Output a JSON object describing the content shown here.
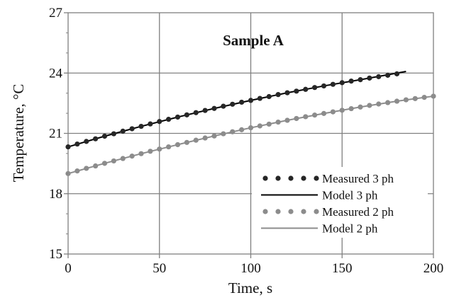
{
  "chart_data": {
    "type": "line",
    "title": "Sample A",
    "xlabel": "Time, s",
    "ylabel": "Temperature, °C",
    "xlim": [
      0,
      200
    ],
    "ylim": [
      15,
      27
    ],
    "x_ticks": [
      "0",
      "50",
      "100",
      "150",
      "200"
    ],
    "y_ticks": [
      "15",
      "18",
      "21",
      "24",
      "27"
    ],
    "grid": true,
    "legend_position": "bottom-right",
    "series": [
      {
        "name": "Measured 3 ph",
        "style": "dots",
        "color": "#262626",
        "x": [
          0,
          5,
          10,
          15,
          20,
          25,
          30,
          35,
          40,
          45,
          50,
          55,
          60,
          65,
          70,
          75,
          80,
          85,
          90,
          95,
          100,
          105,
          110,
          115,
          120,
          125,
          130,
          135,
          140,
          145,
          150,
          155,
          160,
          165,
          170,
          175,
          180
        ],
        "y": [
          20.33,
          20.47,
          20.6,
          20.73,
          20.86,
          20.98,
          21.11,
          21.23,
          21.35,
          21.47,
          21.59,
          21.7,
          21.81,
          21.92,
          22.03,
          22.14,
          22.24,
          22.35,
          22.45,
          22.55,
          22.64,
          22.74,
          22.83,
          22.93,
          23.02,
          23.1,
          23.19,
          23.28,
          23.36,
          23.44,
          23.52,
          23.6,
          23.67,
          23.75,
          23.82,
          23.89,
          23.96
        ]
      },
      {
        "name": "Model 3 ph",
        "style": "line",
        "color": "#000000",
        "x": [
          0,
          20,
          40,
          60,
          80,
          100,
          120,
          140,
          160,
          185
        ],
        "y": [
          20.33,
          20.86,
          21.35,
          21.81,
          22.24,
          22.64,
          23.02,
          23.36,
          23.67,
          24.08
        ]
      },
      {
        "name": "Measured 2 ph",
        "style": "dots",
        "color": "#8c8c8c",
        "x": [
          0,
          5,
          10,
          15,
          20,
          25,
          30,
          35,
          40,
          45,
          50,
          55,
          60,
          65,
          70,
          75,
          80,
          85,
          90,
          95,
          100,
          105,
          110,
          115,
          120,
          125,
          130,
          135,
          140,
          145,
          150,
          155,
          160,
          165,
          170,
          175,
          180,
          185,
          190,
          195,
          200
        ],
        "y": [
          19.0,
          19.13,
          19.26,
          19.38,
          19.51,
          19.63,
          19.75,
          19.87,
          19.99,
          20.11,
          20.22,
          20.33,
          20.44,
          20.55,
          20.66,
          20.77,
          20.87,
          20.98,
          21.08,
          21.18,
          21.28,
          21.37,
          21.46,
          21.56,
          21.65,
          21.74,
          21.83,
          21.91,
          21.99,
          22.07,
          22.15,
          22.23,
          22.31,
          22.39,
          22.46,
          22.53,
          22.6,
          22.67,
          22.73,
          22.79,
          22.85
        ]
      },
      {
        "name": "Model 2 ph",
        "style": "line",
        "color": "#8c8c8c",
        "x": [
          0,
          20,
          40,
          60,
          80,
          100,
          120,
          140,
          160,
          180,
          200
        ],
        "y": [
          19.0,
          19.51,
          19.99,
          20.44,
          20.87,
          21.28,
          21.65,
          21.99,
          22.31,
          22.6,
          22.85
        ]
      }
    ]
  }
}
